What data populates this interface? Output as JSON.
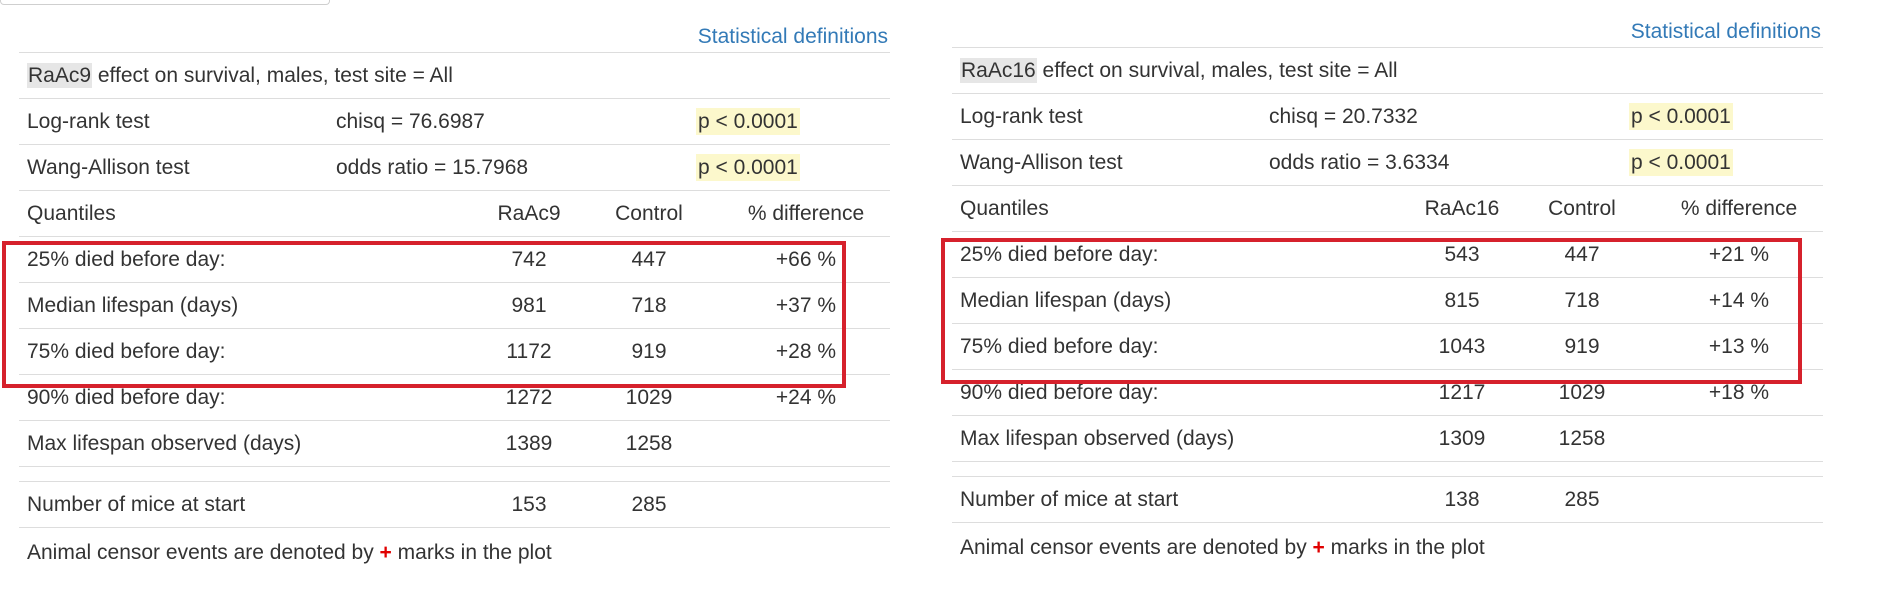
{
  "left": {
    "defs_link": "Statistical definitions",
    "title_drug": "RaAc9",
    "title_rest": " effect on survival, males, test site = All",
    "tests": [
      {
        "name": "Log-rank test",
        "stat": "chisq = 76.6987",
        "p": "p < 0.0001"
      },
      {
        "name": "Wang-Allison test",
        "stat": "odds ratio = 15.7968",
        "p": "p < 0.0001"
      }
    ],
    "quantiles_header": {
      "label": "Quantiles",
      "group": "RaAc9",
      "control": "Control",
      "diff": "% difference"
    },
    "rows": [
      {
        "label": "25% died before day:",
        "group": "742",
        "control": "447",
        "diff": "+66 %"
      },
      {
        "label": "Median lifespan (days)",
        "group": "981",
        "control": "718",
        "diff": "+37 %"
      },
      {
        "label": "75% died before day:",
        "group": "1172",
        "control": "919",
        "diff": "+28 %"
      },
      {
        "label": "90% died before day:",
        "group": "1272",
        "control": "1029",
        "diff": "+24 %"
      },
      {
        "label": "Max lifespan observed (days)",
        "group": "1389",
        "control": "1258",
        "diff": ""
      }
    ],
    "mice": {
      "label": "Number of mice at start",
      "group": "153",
      "control": "285"
    },
    "footnote": {
      "before": "Animal censor events are denoted by ",
      "mark": "+",
      "after": " marks in the plot"
    }
  },
  "right": {
    "defs_link": "Statistical definitions",
    "title_drug": "RaAc16",
    "title_rest": " effect on survival, males, test site = All",
    "tests": [
      {
        "name": "Log-rank test",
        "stat": "chisq = 20.7332",
        "p": "p < 0.0001"
      },
      {
        "name": "Wang-Allison test",
        "stat": "odds ratio = 3.6334",
        "p": "p < 0.0001"
      }
    ],
    "quantiles_header": {
      "label": "Quantiles",
      "group": "RaAc16",
      "control": "Control",
      "diff": "% difference"
    },
    "rows": [
      {
        "label": "25% died before day:",
        "group": "543",
        "control": "447",
        "diff": "+21 %"
      },
      {
        "label": "Median lifespan (days)",
        "group": "815",
        "control": "718",
        "diff": "+14 %"
      },
      {
        "label": "75% died before day:",
        "group": "1043",
        "control": "919",
        "diff": "+13 %"
      },
      {
        "label": "90% died before day:",
        "group": "1217",
        "control": "1029",
        "diff": "+18 %"
      },
      {
        "label": "Max lifespan observed (days)",
        "group": "1309",
        "control": "1258",
        "diff": ""
      }
    ],
    "mice": {
      "label": "Number of mice at start",
      "group": "138",
      "control": "285"
    },
    "footnote": {
      "before": "Animal censor events are denoted by ",
      "mark": "+",
      "after": " marks in the plot"
    }
  },
  "colors": {
    "link": "#337ab7",
    "highlight": "#fcf8cc",
    "box": "#d6212c",
    "censor_mark": "#e00000"
  }
}
